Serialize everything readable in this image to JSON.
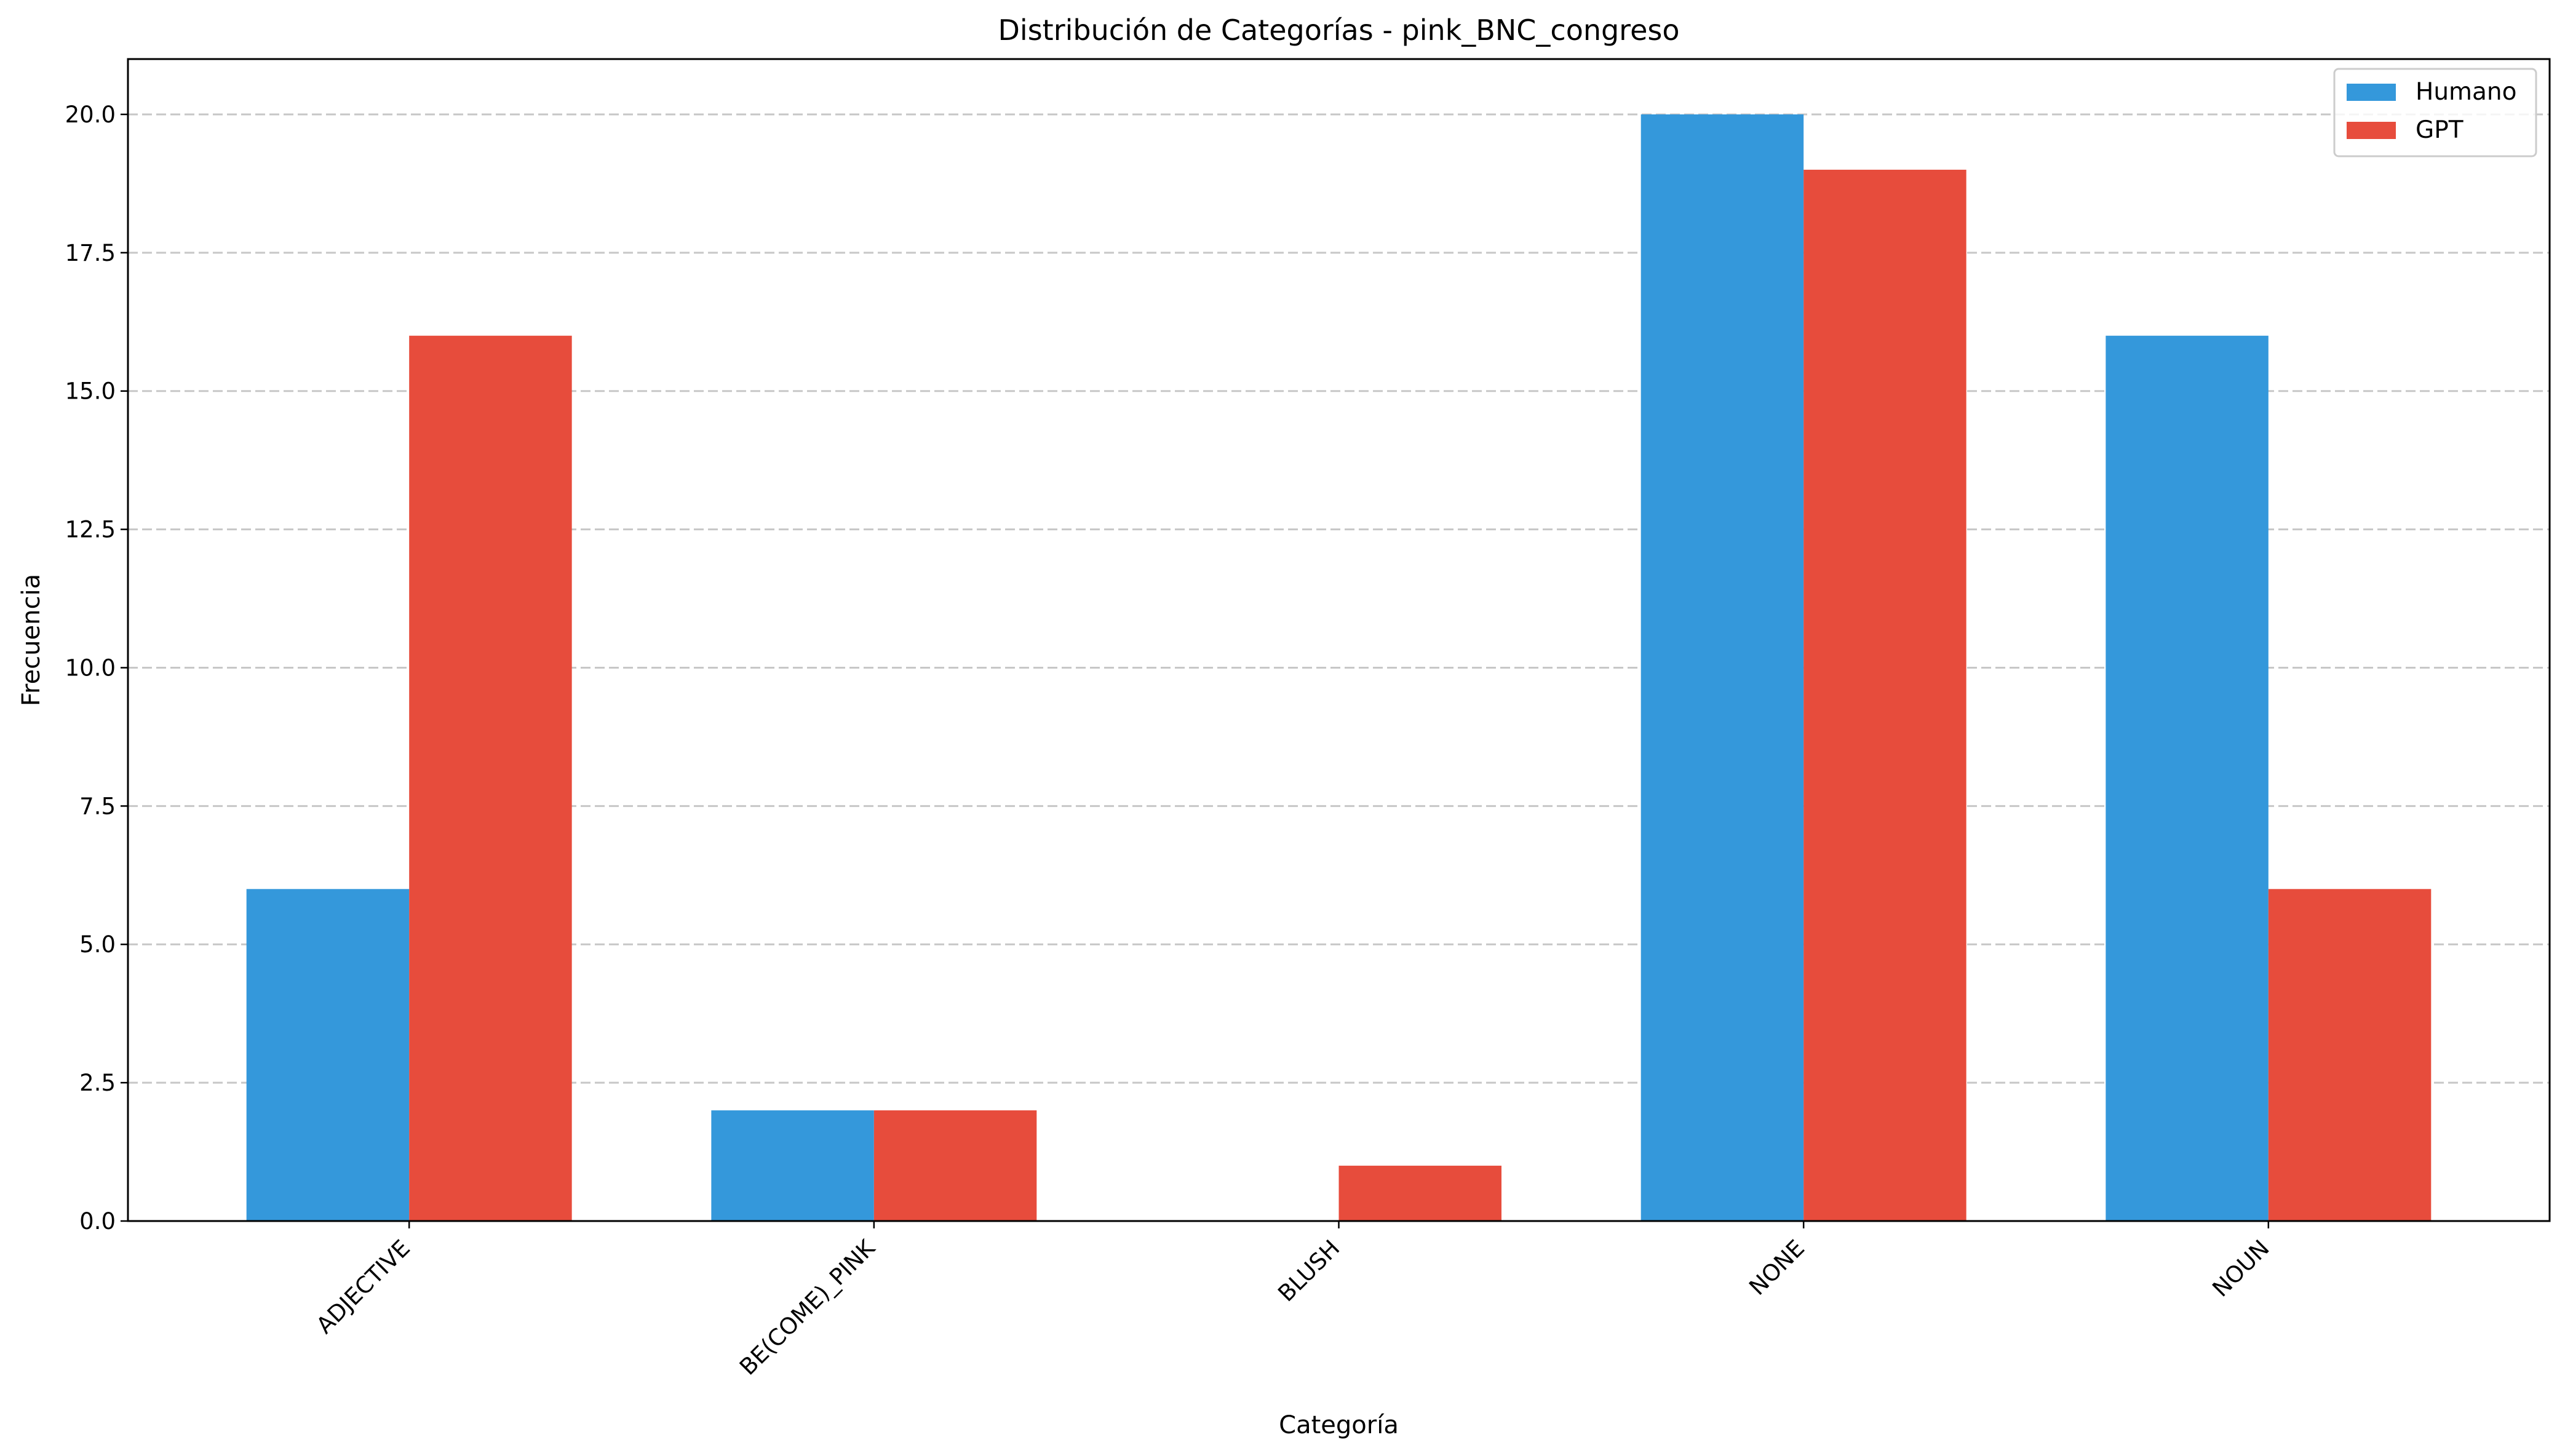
{
  "chart_data": {
    "type": "bar",
    "title": "Distribución de Categorías - pink_BNC_congreso",
    "xlabel": "Categoría",
    "ylabel": "Frecuencia",
    "categories": [
      "ADJECTIVE",
      "BE(COME)_PINK",
      "BLUSH",
      "NONE",
      "NOUN"
    ],
    "series": [
      {
        "name": "Humano",
        "color": "#3498db",
        "values": [
          6,
          2,
          0,
          20,
          16
        ]
      },
      {
        "name": "GPT",
        "color": "#e74c3c",
        "values": [
          16,
          2,
          1,
          19,
          6
        ]
      }
    ],
    "ylim": [
      0,
      21
    ],
    "yticks": [
      "0.0",
      "2.5",
      "5.0",
      "7.5",
      "10.0",
      "12.5",
      "15.0",
      "17.5",
      "20.0"
    ],
    "ytick_values": [
      0,
      2.5,
      5,
      7.5,
      10,
      12.5,
      15,
      17.5,
      20
    ],
    "grid": "y-dashed",
    "legend_position": "upper right"
  }
}
